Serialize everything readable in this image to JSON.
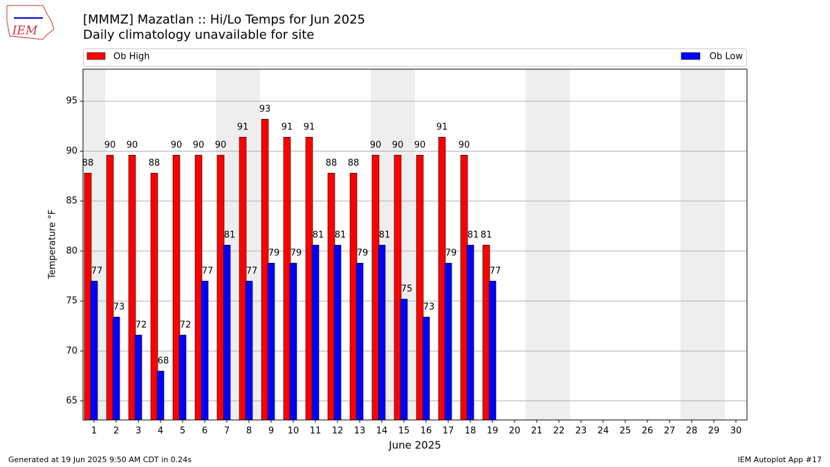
{
  "logo": {
    "text": "IEM"
  },
  "chart_data": {
    "type": "bar",
    "title": "[MMMZ] Mazatlan :: Hi/Lo Temps for Jun 2025",
    "subtitle": "Daily climatology unavailable for site",
    "x_label": "June 2025",
    "y_label": "Temperature °F",
    "categories": [
      "1",
      "2",
      "3",
      "4",
      "5",
      "6",
      "7",
      "8",
      "9",
      "10",
      "11",
      "12",
      "13",
      "14",
      "15",
      "16",
      "17",
      "18",
      "19",
      "20",
      "21",
      "22",
      "23",
      "24",
      "25",
      "26",
      "27",
      "28",
      "29",
      "30"
    ],
    "series": [
      {
        "name": "Ob High",
        "color": "#ff0000",
        "values": [
          87.8,
          89.6,
          89.6,
          87.8,
          89.6,
          89.6,
          89.6,
          91.4,
          93.2,
          91.4,
          91.4,
          87.8,
          87.8,
          89.6,
          89.6,
          89.6,
          91.4,
          89.6,
          80.6,
          null,
          null,
          null,
          null,
          null,
          null,
          null,
          null,
          null,
          null,
          null
        ],
        "value_labels": [
          "88",
          "90",
          "90",
          "88",
          "90",
          "90",
          "90",
          "91",
          "93",
          "91",
          "91",
          "88",
          "88",
          "90",
          "90",
          "90",
          "91",
          "90",
          "81",
          null,
          null,
          null,
          null,
          null,
          null,
          null,
          null,
          null,
          null,
          null
        ]
      },
      {
        "name": "Ob Low",
        "color": "#0000ff",
        "values": [
          77.0,
          73.4,
          71.6,
          68.0,
          71.6,
          77.0,
          80.6,
          77.0,
          78.8,
          78.8,
          80.6,
          80.6,
          78.8,
          80.6,
          75.2,
          73.4,
          78.8,
          80.6,
          77.0,
          null,
          null,
          null,
          null,
          null,
          null,
          null,
          null,
          null,
          null,
          null
        ],
        "value_labels": [
          "77",
          "73",
          "72",
          "68",
          "72",
          "77",
          "81",
          "77",
          "79",
          "79",
          "81",
          "81",
          "79",
          "81",
          "75",
          "73",
          "79",
          "81",
          "77",
          null,
          null,
          null,
          null,
          null,
          null,
          null,
          null,
          null,
          null,
          null
        ]
      }
    ],
    "ylim": [
      63.1,
      98.2
    ],
    "yticks": [
      65,
      70,
      75,
      80,
      85,
      90,
      95
    ],
    "grid": true,
    "footer_left": "Generated at 19 Jun 2025 9:50 AM CDT in 0.24s",
    "footer_right": "IEM Autoplot App #17"
  }
}
